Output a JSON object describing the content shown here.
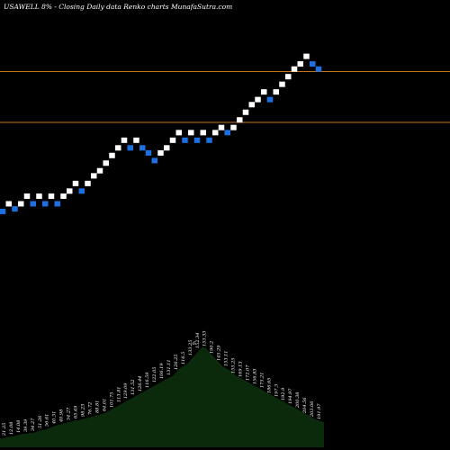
{
  "header": {
    "title": "USAWELL  8% -  Closing Daily data  Renko  charts MunafaSutra.com"
  },
  "chart_data": {
    "type": "renko",
    "title": "USAWELL  8% -  Closing Daily data  Renko  charts MunafaSutra.com",
    "colors": {
      "up": "#ffffff",
      "down": "#1e6fe0",
      "line": "#c8741e",
      "volume": "#0b2a0b",
      "background": "#000000"
    },
    "reference_lines": [
      {
        "name": "upper",
        "value": 0.73
      },
      {
        "name": "lower",
        "value": 0.63
      }
    ],
    "bricks": [
      {
        "d": "down",
        "v": 0.455
      },
      {
        "d": "up",
        "v": 0.47
      },
      {
        "d": "down",
        "v": 0.46
      },
      {
        "d": "up",
        "v": 0.47
      },
      {
        "d": "up",
        "v": 0.485
      },
      {
        "d": "down",
        "v": 0.47
      },
      {
        "d": "up",
        "v": 0.485
      },
      {
        "d": "down",
        "v": 0.47
      },
      {
        "d": "up",
        "v": 0.485
      },
      {
        "d": "down",
        "v": 0.47
      },
      {
        "d": "up",
        "v": 0.485
      },
      {
        "d": "up",
        "v": 0.495
      },
      {
        "d": "up",
        "v": 0.51
      },
      {
        "d": "down",
        "v": 0.495
      },
      {
        "d": "up",
        "v": 0.51
      },
      {
        "d": "up",
        "v": 0.525
      },
      {
        "d": "up",
        "v": 0.535
      },
      {
        "d": "up",
        "v": 0.55
      },
      {
        "d": "up",
        "v": 0.565
      },
      {
        "d": "up",
        "v": 0.58
      },
      {
        "d": "up",
        "v": 0.595
      },
      {
        "d": "down",
        "v": 0.58
      },
      {
        "d": "up",
        "v": 0.595
      },
      {
        "d": "down",
        "v": 0.58
      },
      {
        "d": "down",
        "v": 0.57
      },
      {
        "d": "down",
        "v": 0.555
      },
      {
        "d": "up",
        "v": 0.57
      },
      {
        "d": "up",
        "v": 0.58
      },
      {
        "d": "up",
        "v": 0.595
      },
      {
        "d": "up",
        "v": 0.61
      },
      {
        "d": "down",
        "v": 0.595
      },
      {
        "d": "up",
        "v": 0.61
      },
      {
        "d": "down",
        "v": 0.595
      },
      {
        "d": "up",
        "v": 0.61
      },
      {
        "d": "down",
        "v": 0.595
      },
      {
        "d": "up",
        "v": 0.61
      },
      {
        "d": "up",
        "v": 0.62
      },
      {
        "d": "down",
        "v": 0.61
      },
      {
        "d": "up",
        "v": 0.62
      },
      {
        "d": "up",
        "v": 0.635
      },
      {
        "d": "up",
        "v": 0.65
      },
      {
        "d": "up",
        "v": 0.665
      },
      {
        "d": "up",
        "v": 0.675
      },
      {
        "d": "up",
        "v": 0.69
      },
      {
        "d": "down",
        "v": 0.675
      },
      {
        "d": "up",
        "v": 0.69
      },
      {
        "d": "up",
        "v": 0.705
      },
      {
        "d": "up",
        "v": 0.72
      },
      {
        "d": "up",
        "v": 0.735
      },
      {
        "d": "up",
        "v": 0.745
      },
      {
        "d": "up",
        "v": 0.76
      },
      {
        "d": "down",
        "v": 0.745
      },
      {
        "d": "down",
        "v": 0.735
      }
    ],
    "volume": [
      10,
      10,
      11,
      12,
      12,
      13,
      14,
      15,
      15,
      16,
      16,
      17,
      18,
      19,
      20,
      21,
      23,
      24,
      25,
      26,
      27,
      28,
      29,
      30,
      30,
      31,
      32,
      33,
      34,
      35,
      36,
      37,
      38,
      40,
      42,
      44,
      46,
      48,
      50,
      52,
      54,
      56,
      58,
      60,
      62,
      64,
      66,
      68,
      70,
      72,
      74,
      76,
      78,
      80,
      84,
      88,
      90,
      92,
      96,
      100,
      104,
      108,
      112,
      110,
      106,
      102,
      98,
      94,
      90,
      88,
      86,
      84,
      80,
      78,
      76,
      74,
      72,
      70,
      68,
      66,
      64,
      62,
      60,
      58,
      56,
      54,
      52,
      50,
      48,
      46,
      44,
      42,
      40,
      38,
      36,
      34,
      32,
      30,
      29,
      28
    ],
    "volume_labels": [
      "21.25",
      "12.08",
      "14.08",
      "39.39",
      "34.27",
      "51.26",
      "56.61",
      "40.31",
      "40.98",
      "54.27",
      "65.49",
      "98.23",
      "76.72",
      "88.81",
      "64.01",
      "101.75",
      "113.81",
      "129.09",
      "131.52",
      "126.44",
      "116.59",
      "122.05",
      "106.19",
      "131.11",
      "126.25",
      "116.5",
      "133.25",
      "152.34",
      "153.33",
      "190.2",
      "145.29",
      "153.11",
      "155.25",
      "169.13",
      "172.07",
      "156.83",
      "175.21",
      "186.65",
      "197.3",
      "192.9",
      "194.97",
      "200.38",
      "204.56",
      "203.06",
      "191.97"
    ],
    "volume_marker": "6"
  }
}
